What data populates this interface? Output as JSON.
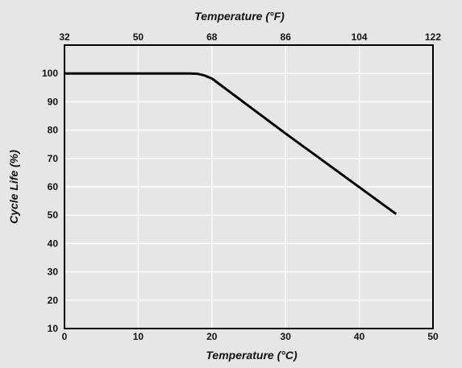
{
  "chart_data": {
    "type": "line",
    "title": "",
    "xlabel": "Temperature (°C)",
    "x2label": "Temperature (°F)",
    "ylabel": "Cycle Life (%)",
    "xlim": [
      0,
      50
    ],
    "ylim": [
      10,
      110
    ],
    "x_ticks": [
      "0",
      "10",
      "20",
      "30",
      "40",
      "50"
    ],
    "x2_ticks": [
      "32",
      "50",
      "68",
      "86",
      "104",
      "122"
    ],
    "y_ticks": [
      "10",
      "20",
      "30",
      "40",
      "50",
      "60",
      "70",
      "80",
      "90",
      "100"
    ],
    "grid": true,
    "series": [
      {
        "x": [
          0,
          10,
          17,
          18,
          19,
          20,
          30,
          40,
          45
        ],
        "y": [
          100,
          100,
          100,
          99.9,
          99.3,
          98.2,
          78.8,
          59.9,
          50.4
        ]
      }
    ],
    "colors": {
      "line": "#000000",
      "grid": "#ffffff",
      "plot_bg": "#e6e6e6",
      "frame": "#000000"
    }
  }
}
